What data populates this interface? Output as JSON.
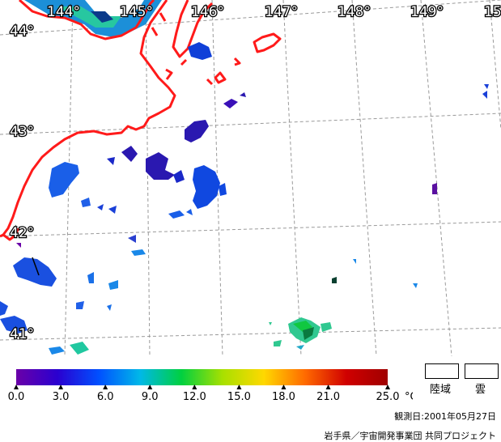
{
  "map": {
    "longitude_labels": [
      "144°",
      "145°",
      "146°",
      "147°",
      "148°",
      "149°",
      "15"
    ],
    "latitude_labels": [
      "44°",
      "43°",
      "42°",
      "41°"
    ],
    "colors": {
      "coastline": "#ff1a1a",
      "grid": "#9a9a9a",
      "land_fill": "#1c8fd8",
      "land_inner": "#27c7a0"
    }
  },
  "colorbar": {
    "min": 0.0,
    "max": 25.0,
    "unit": "°C",
    "ticks": [
      "0.0",
      "3.0",
      "6.0",
      "9.0",
      "12.0",
      "15.0",
      "18.0",
      "21.0",
      "25.0"
    ],
    "tick_values": [
      0,
      3,
      6,
      9,
      12,
      15,
      18,
      21,
      25
    ],
    "gradient_colors": [
      "#6a00a8",
      "#2a00d0",
      "#0050ff",
      "#00b8e8",
      "#00d040",
      "#a8e000",
      "#ffd800",
      "#ff6a00",
      "#d00000",
      "#a00000"
    ]
  },
  "legend": {
    "land_label": "陸域",
    "cloud_label": "雲"
  },
  "footer": {
    "observation_date": "観測日:2001年05月27日",
    "credit": "岩手県／宇宙開発事業団 共同プロジェクト"
  }
}
